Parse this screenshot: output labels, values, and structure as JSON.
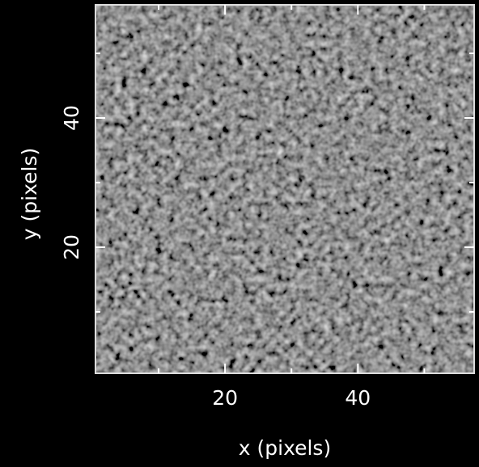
{
  "chart_data": {
    "type": "image",
    "x_label": "x (pixels)",
    "y_label": "y (pixels)",
    "xlim": [
      0.5,
      57.5
    ],
    "ylim": [
      0.5,
      57.5
    ],
    "xticks": [
      20,
      40
    ],
    "yticks": [
      20,
      40
    ],
    "xminor_ticks": [
      10,
      30,
      50
    ],
    "yminor_ticks": [
      10,
      30,
      50
    ],
    "colormap": "gray"
  }
}
